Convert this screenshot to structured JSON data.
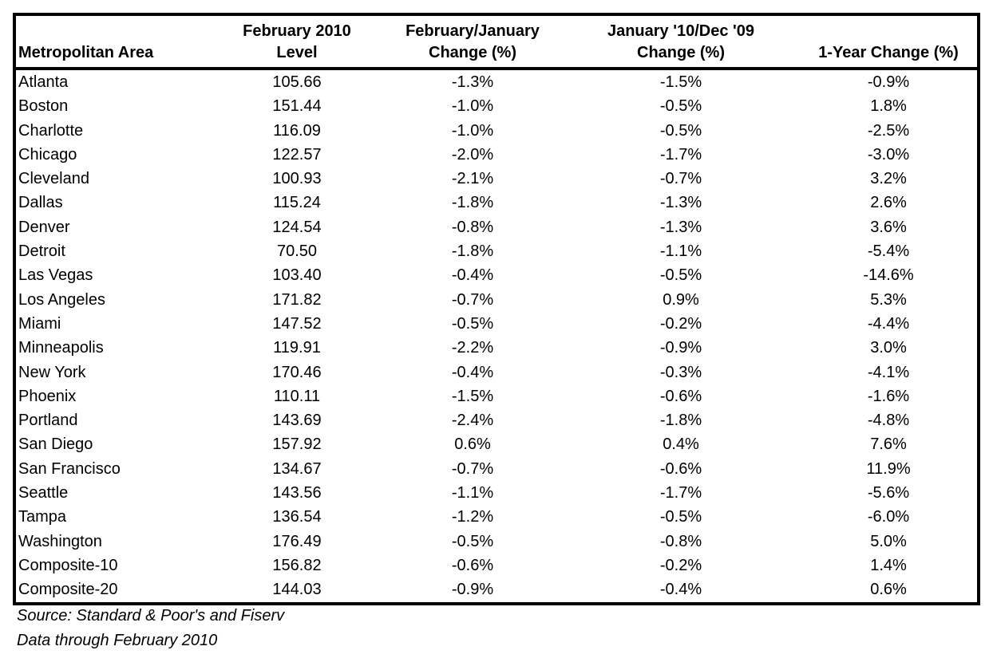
{
  "colors": {
    "border": "#000000",
    "text": "#000000",
    "background": "#ffffff"
  },
  "table": {
    "columns": [
      {
        "id": "metropolitan-area",
        "align": "left",
        "header_lines": [
          "Metropolitan Area"
        ]
      },
      {
        "id": "february-2010-level",
        "align": "center",
        "header_lines": [
          "February 2010",
          "Level"
        ]
      },
      {
        "id": "february-january-change",
        "align": "center",
        "header_lines": [
          "February/January",
          "Change (%)"
        ]
      },
      {
        "id": "january-10-dec-09-change",
        "align": "center",
        "header_lines": [
          "January '10/Dec '09",
          "Change (%)"
        ]
      },
      {
        "id": "one-year-change",
        "align": "center",
        "header_lines": [
          "1-Year Change (%)"
        ]
      }
    ],
    "rows": [
      [
        "Atlanta",
        "105.66",
        "-1.3%",
        "-1.5%",
        "-0.9%"
      ],
      [
        "Boston",
        "151.44",
        "-1.0%",
        "-0.5%",
        "1.8%"
      ],
      [
        "Charlotte",
        "116.09",
        "-1.0%",
        "-0.5%",
        "-2.5%"
      ],
      [
        "Chicago",
        "122.57",
        "-2.0%",
        "-1.7%",
        "-3.0%"
      ],
      [
        "Cleveland",
        "100.93",
        "-2.1%",
        "-0.7%",
        "3.2%"
      ],
      [
        "Dallas",
        "115.24",
        "-1.8%",
        "-1.3%",
        "2.6%"
      ],
      [
        "Denver",
        "124.54",
        "-0.8%",
        "-1.3%",
        "3.6%"
      ],
      [
        "Detroit",
        "70.50",
        "-1.8%",
        "-1.1%",
        "-5.4%"
      ],
      [
        "Las Vegas",
        "103.40",
        "-0.4%",
        "-0.5%",
        "-14.6%"
      ],
      [
        "Los Angeles",
        "171.82",
        "-0.7%",
        "0.9%",
        "5.3%"
      ],
      [
        "Miami",
        "147.52",
        "-0.5%",
        "-0.2%",
        "-4.4%"
      ],
      [
        "Minneapolis",
        "119.91",
        "-2.2%",
        "-0.9%",
        "3.0%"
      ],
      [
        "New York",
        "170.46",
        "-0.4%",
        "-0.3%",
        "-4.1%"
      ],
      [
        "Phoenix",
        "110.11",
        "-1.5%",
        "-0.6%",
        "-1.6%"
      ],
      [
        "Portland",
        "143.69",
        "-2.4%",
        "-1.8%",
        "-4.8%"
      ],
      [
        "San Diego",
        "157.92",
        "0.6%",
        "0.4%",
        "7.6%"
      ],
      [
        "San Francisco",
        "134.67",
        "-0.7%",
        "-0.6%",
        "11.9%"
      ],
      [
        "Seattle",
        "143.56",
        "-1.1%",
        "-1.7%",
        "-5.6%"
      ],
      [
        "Tampa",
        "136.54",
        "-1.2%",
        "-0.5%",
        "-6.0%"
      ],
      [
        "Washington",
        "176.49",
        "-0.5%",
        "-0.8%",
        "5.0%"
      ],
      [
        "Composite-10",
        "156.82",
        "-0.6%",
        "-0.2%",
        "1.4%"
      ],
      [
        "Composite-20",
        "144.03",
        "-0.9%",
        "-0.4%",
        "0.6%"
      ]
    ]
  },
  "footer": {
    "source_line": "Source: Standard & Poor's and Fiserv",
    "data_line": "Data through February 2010"
  }
}
